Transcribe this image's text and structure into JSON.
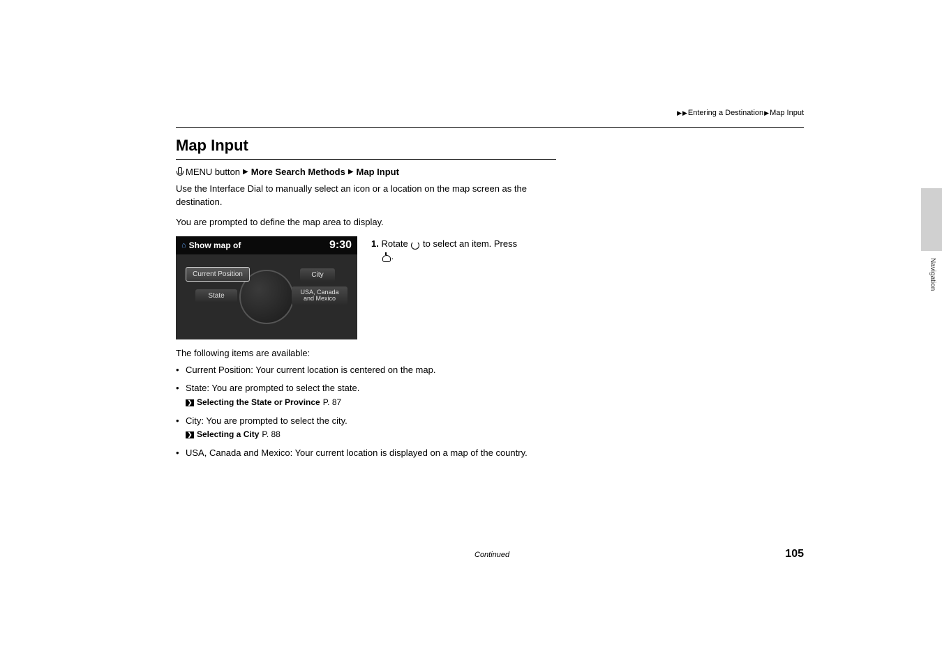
{
  "breadcrumb": {
    "seg1": "Entering a Destination",
    "seg2": "Map Input"
  },
  "title": "Map Input",
  "nav_path": {
    "btn": "MENU button",
    "seg1": "More Search Methods",
    "seg2": "Map Input"
  },
  "intro1": "Use the Interface Dial to manually select an icon or a location on the map screen as the destination.",
  "intro2": "You are prompted to define the map area to display.",
  "screenshot": {
    "header": "Show map of",
    "time": "9:30",
    "btn_cp": "Current Position",
    "btn_state": "State",
    "btn_city": "City",
    "btn_usa": "USA, Canada and Mexico"
  },
  "step1": {
    "num": "1.",
    "text_a": "Rotate ",
    "text_b": " to select an item. Press ",
    "text_c": "."
  },
  "list_intro": "The following items are available:",
  "items": {
    "cp": {
      "label": "Current Position",
      "desc": ": Your current location is centered on the map."
    },
    "state": {
      "label": "State",
      "desc": ": You are prompted to select the state.",
      "ref": "Selecting the State or Province",
      "page": "P. 87"
    },
    "city": {
      "label": "City",
      "desc": ": You are prompted to select the city.",
      "ref": "Selecting a City",
      "page": "P. 88"
    },
    "usa": {
      "label": "USA, Canada and Mexico",
      "desc": ": Your current location is displayed on a map of the country."
    }
  },
  "side_label": "Navigation",
  "continued": "Continued",
  "page_num": "105"
}
